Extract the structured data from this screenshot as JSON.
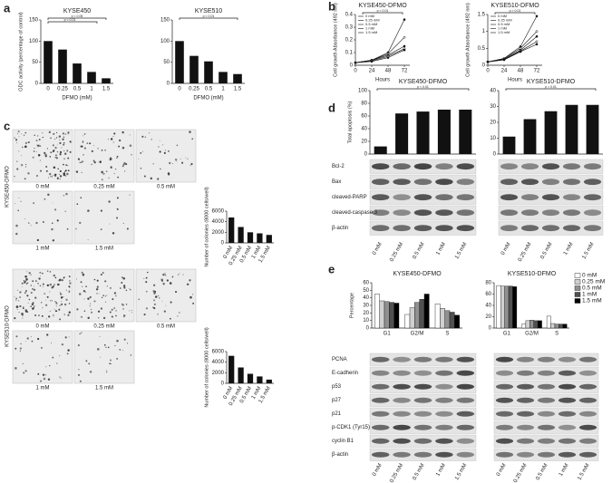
{
  "panels": [
    "a",
    "b",
    "c",
    "d",
    "e"
  ],
  "chart_data": [
    {
      "type": "bar",
      "title": "KYSE450",
      "categories": [
        "0",
        "0.25",
        "0.5",
        "1",
        "1.5"
      ],
      "values": [
        100,
        80,
        47,
        27,
        12
      ],
      "color": "#111111",
      "ylim": [
        0,
        150
      ],
      "yticks": [
        0,
        50,
        100,
        150
      ],
      "xlabel": "DFMO (mM)",
      "ylabel": "ODC activity (percentage of control)",
      "annotations": [
        "p < 0.05",
        "p < 0.01"
      ]
    },
    {
      "type": "bar",
      "title": "KYSE510",
      "categories": [
        "0",
        "0.25",
        "0.5",
        "1",
        "1.5"
      ],
      "values": [
        100,
        65,
        52,
        27,
        22
      ],
      "color": "#111111",
      "ylim": [
        0,
        150
      ],
      "yticks": [
        0,
        50,
        100,
        150
      ],
      "xlabel": "DFMO (mM)",
      "annotations": [
        "p < 0.01"
      ]
    },
    {
      "type": "line",
      "title": "KYSE450-DFMO",
      "x": [
        0,
        24,
        48,
        72
      ],
      "xlim": [
        0,
        80
      ],
      "xticks": [
        0,
        24,
        48,
        72
      ],
      "ylim": [
        0,
        0.4
      ],
      "yticks": [
        0,
        0.1,
        0.2,
        0.3,
        0.4
      ],
      "xlabel": "Hours",
      "ylabel": "Cell growth Absorbance (492 nm)",
      "annotations": [
        "p < 0.01"
      ],
      "series": [
        {
          "name": "0 mM",
          "color": "#111111",
          "values": [
            0.02,
            0.04,
            0.1,
            0.36
          ]
        },
        {
          "name": "0.25 mM",
          "color": "#111111",
          "values": [
            0.02,
            0.04,
            0.09,
            0.22
          ]
        },
        {
          "name": "0.5 mM",
          "color": "#111111",
          "values": [
            0.02,
            0.04,
            0.08,
            0.15
          ]
        },
        {
          "name": "1 mM",
          "color": "#111111",
          "values": [
            0.02,
            0.035,
            0.07,
            0.13
          ]
        },
        {
          "name": "1.5 mM",
          "color": "#111111",
          "values": [
            0.02,
            0.03,
            0.06,
            0.12
          ]
        }
      ]
    },
    {
      "type": "line",
      "title": "KYSE510-DFMO",
      "x": [
        0,
        24,
        48,
        72
      ],
      "xlim": [
        0,
        80
      ],
      "xticks": [
        0,
        24,
        48,
        72
      ],
      "ylim": [
        0,
        1.5
      ],
      "yticks": [
        0,
        0.5,
        1,
        1.5
      ],
      "xlabel": "Hours",
      "ylabel": "Cell growth Absorbance (492 nm)",
      "annotations": [
        "p < 0.01"
      ],
      "series": [
        {
          "name": "0 mM",
          "color": "#111111",
          "values": [
            0.1,
            0.2,
            0.55,
            1.45
          ]
        },
        {
          "name": "0.25 mM",
          "color": "#111111",
          "values": [
            0.1,
            0.2,
            0.5,
            1.0
          ]
        },
        {
          "name": "0.5 mM",
          "color": "#111111",
          "values": [
            0.1,
            0.18,
            0.45,
            0.85
          ]
        },
        {
          "name": "1 mM",
          "color": "#111111",
          "values": [
            0.1,
            0.17,
            0.42,
            0.7
          ]
        },
        {
          "name": "1.5 mM",
          "color": "#111111",
          "values": [
            0.1,
            0.16,
            0.4,
            0.62
          ]
        }
      ]
    },
    {
      "type": "bar",
      "categories": [
        "0 mM",
        "0.25 mM",
        "0.5 mM",
        "1 mM",
        "1.5 mM"
      ],
      "values": [
        4800,
        3000,
        2000,
        1800,
        1500
      ],
      "color": "#111111",
      "ylim": [
        0,
        6000
      ],
      "yticks": [
        0,
        2000,
        4000,
        6000
      ],
      "ylabel": "Number of colonies (8000 cells/well)"
    },
    {
      "type": "bar",
      "categories": [
        "0 mM",
        "0.25 mM",
        "0.5 mM",
        "1 mM",
        "1.5 mM"
      ],
      "values": [
        5200,
        3000,
        1800,
        1300,
        700
      ],
      "color": "#111111",
      "ylim": [
        0,
        6000
      ],
      "yticks": [
        0,
        2000,
        4000,
        6000
      ],
      "ylabel": "Number of colonies (8000 cells/well)"
    },
    {
      "type": "bar",
      "title": "KYSE450-DFMO",
      "categories": [
        null,
        null,
        null,
        null,
        null
      ],
      "values": [
        12,
        64,
        67,
        70,
        70
      ],
      "color": "#111111",
      "ylim": [
        0,
        100
      ],
      "yticks": [
        0,
        20,
        40,
        60,
        80,
        100
      ],
      "ylabel": "Total apoptosis (%)",
      "annotations": [
        "p < 0.01"
      ]
    },
    {
      "type": "bar",
      "title": "KYSE510-DFMO",
      "categories": [
        null,
        null,
        null,
        null,
        null
      ],
      "values": [
        11,
        22,
        27,
        31,
        31
      ],
      "color": "#111111",
      "ylim": [
        0,
        40
      ],
      "yticks": [
        0,
        10,
        20,
        30,
        40
      ],
      "annotations": [
        "p < 0.01"
      ]
    },
    {
      "type": "bar",
      "title": "KYSE450-DFMO",
      "categories": [
        "G1",
        "G2/M",
        "S"
      ],
      "ylim": [
        0,
        60
      ],
      "yticks": [
        0,
        10,
        20,
        30,
        40,
        50,
        60
      ],
      "ylabel": "Percentage",
      "series": [
        {
          "color": "#ffffff",
          "values": [
            45,
            18,
            32
          ]
        },
        {
          "color": "#d0d0d0",
          "values": [
            36,
            27,
            26
          ]
        },
        {
          "color": "#909090",
          "values": [
            35,
            34,
            23
          ]
        },
        {
          "color": "#505050",
          "values": [
            34,
            38,
            21
          ]
        },
        {
          "color": "#000000",
          "values": [
            33,
            45,
            17
          ]
        }
      ]
    },
    {
      "type": "bar",
      "title": "KYSE510-DFMO",
      "categories": [
        "G1",
        "G2/M",
        "S"
      ],
      "ylim": [
        0,
        80
      ],
      "yticks": [
        0,
        20,
        40,
        60,
        80
      ],
      "series": [
        {
          "name": "0 mM",
          "color": "#ffffff",
          "values": [
            75,
            7,
            21
          ]
        },
        {
          "name": "0.25 mM",
          "color": "#d0d0d0",
          "values": [
            74,
            13,
            8
          ]
        },
        {
          "name": "0.5 mM",
          "color": "#909090",
          "values": [
            74,
            14,
            7
          ]
        },
        {
          "name": "1 mM",
          "color": "#505050",
          "values": [
            74,
            13,
            7
          ]
        },
        {
          "name": "1.5 mM",
          "color": "#000000",
          "values": [
            73,
            13,
            7
          ]
        }
      ]
    }
  ],
  "colonies": {
    "side_labels": [
      "KYSE450-DFMO",
      "KYSE510-DFMO"
    ],
    "doses": [
      "0 mM",
      "0.25 mM",
      "0.5 mM",
      "1 mM",
      "1.5 mM"
    ]
  },
  "blots": {
    "lanes": [
      "0 mM",
      "0.25 mM",
      "0.5 mM",
      "1 mM",
      "1.5 mM"
    ],
    "d_proteins": [
      "Bcl-2",
      "Bax",
      "cleaved-PARP",
      "cleaved-caspase 3",
      "β-actin"
    ],
    "e_proteins": [
      "PCNA",
      "E-cadherin",
      "p53",
      "p27",
      "p21",
      "p-CDK1 (Tyr15)",
      "cyclin B1",
      "β-actin"
    ]
  }
}
